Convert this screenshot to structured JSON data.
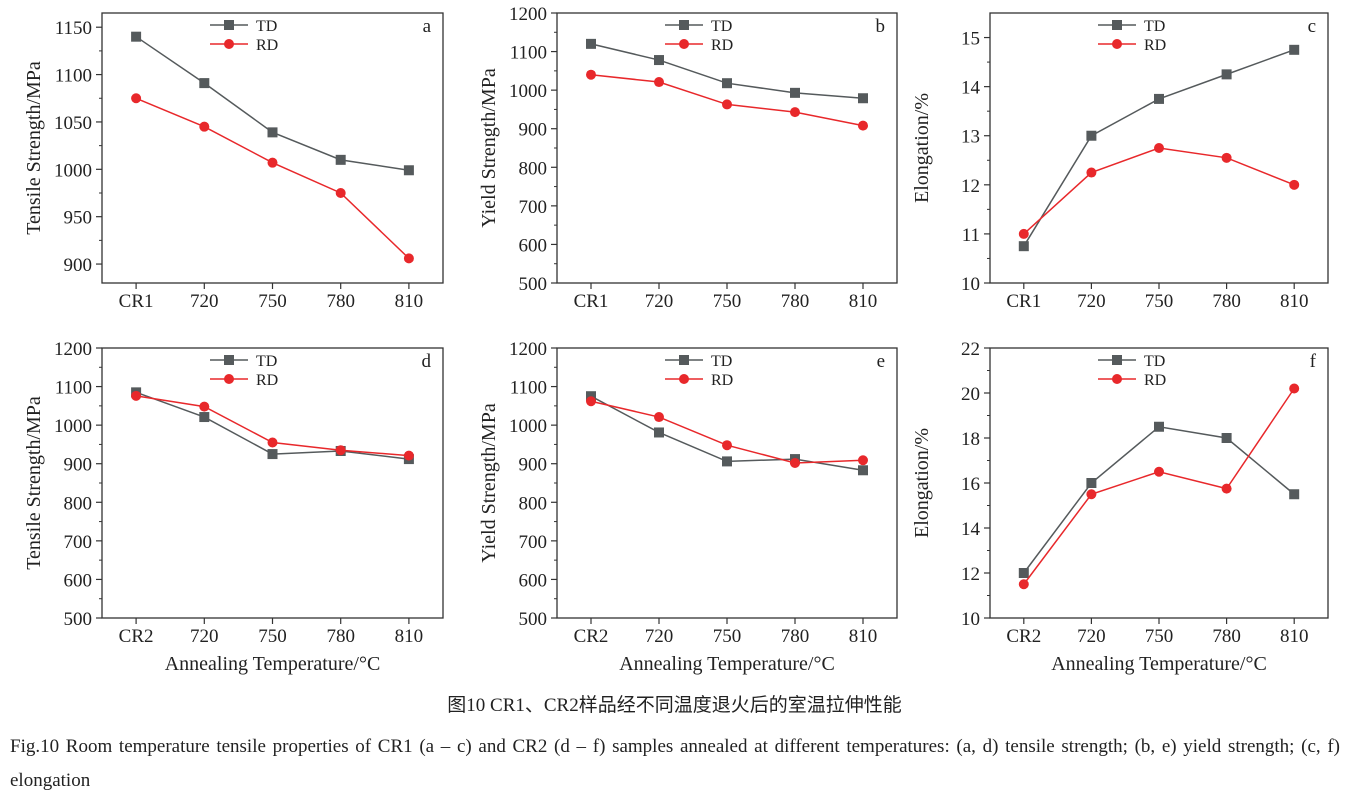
{
  "colors": {
    "td": "#555a5c",
    "rd": "#e8282b",
    "axis": "#333333"
  },
  "caption_cn": "图10 CR1、CR2样品经不同温度退火后的室温拉伸性能",
  "caption_en": "Fig.10 Room temperature tensile properties of CR1 (a – c) and CR2 (d – f) samples annealed at different temperatures: (a, d) tensile strength; (b, e) yield strength; (c, f) elongation",
  "chart_data": [
    {
      "panel": "a",
      "type": "line",
      "ylabel": "Tensile Strength/MPa",
      "xlabel": "",
      "categories": [
        "CR1",
        "720",
        "750",
        "780",
        "810"
      ],
      "ylim": [
        880,
        1165
      ],
      "yticks": [
        900,
        950,
        1000,
        1050,
        1100,
        1150
      ],
      "legend": "top-center",
      "series": [
        {
          "name": "TD",
          "marker": "square",
          "values": [
            1140,
            1091,
            1039,
            1010,
            999
          ]
        },
        {
          "name": "RD",
          "marker": "circle",
          "values": [
            1075,
            1045,
            1007,
            975,
            906
          ]
        }
      ]
    },
    {
      "panel": "b",
      "type": "line",
      "ylabel": "Yield Strength/MPa",
      "xlabel": "",
      "categories": [
        "CR1",
        "720",
        "750",
        "780",
        "810"
      ],
      "ylim": [
        500,
        1200
      ],
      "yticks": [
        500,
        600,
        700,
        800,
        900,
        1000,
        1100,
        1200
      ],
      "legend": "top-center",
      "series": [
        {
          "name": "TD",
          "marker": "square",
          "values": [
            1120,
            1078,
            1018,
            993,
            979
          ]
        },
        {
          "name": "RD",
          "marker": "circle",
          "values": [
            1040,
            1021,
            963,
            943,
            908
          ]
        }
      ]
    },
    {
      "panel": "c",
      "type": "line",
      "ylabel": "Elongation/%",
      "xlabel": "",
      "categories": [
        "CR1",
        "720",
        "750",
        "780",
        "810"
      ],
      "ylim": [
        10,
        15.5
      ],
      "yticks": [
        10,
        11,
        12,
        13,
        14,
        15
      ],
      "legend": "top-center",
      "series": [
        {
          "name": "TD",
          "marker": "square",
          "values": [
            10.75,
            13.0,
            13.75,
            14.25,
            14.75
          ]
        },
        {
          "name": "RD",
          "marker": "circle",
          "values": [
            11.0,
            12.25,
            12.75,
            12.55,
            12.0
          ]
        }
      ]
    },
    {
      "panel": "d",
      "type": "line",
      "ylabel": "Tensile Strength/MPa",
      "xlabel": "Annealing Temperature/°C",
      "categories": [
        "CR2",
        "720",
        "750",
        "780",
        "810"
      ],
      "ylim": [
        500,
        1200
      ],
      "yticks": [
        500,
        600,
        700,
        800,
        900,
        1000,
        1100,
        1200
      ],
      "legend": "top-center",
      "series": [
        {
          "name": "TD",
          "marker": "square",
          "values": [
            1085,
            1021,
            925,
            933,
            912
          ]
        },
        {
          "name": "RD",
          "marker": "circle",
          "values": [
            1076,
            1048,
            955,
            935,
            921
          ]
        }
      ]
    },
    {
      "panel": "e",
      "type": "line",
      "ylabel": "Yield Strength/MPa",
      "xlabel": "Annealing Temperature/°C",
      "categories": [
        "CR2",
        "720",
        "750",
        "780",
        "810"
      ],
      "ylim": [
        500,
        1200
      ],
      "yticks": [
        500,
        600,
        700,
        800,
        900,
        1000,
        1100,
        1200
      ],
      "legend": "top-center",
      "series": [
        {
          "name": "TD",
          "marker": "square",
          "values": [
            1075,
            981,
            906,
            912,
            883
          ]
        },
        {
          "name": "RD",
          "marker": "circle",
          "values": [
            1062,
            1021,
            948,
            902,
            909
          ]
        }
      ]
    },
    {
      "panel": "f",
      "type": "line",
      "ylabel": "Elongation/%",
      "xlabel": "Annealing Temperature/°C",
      "categories": [
        "CR2",
        "720",
        "750",
        "780",
        "810"
      ],
      "ylim": [
        10,
        22
      ],
      "yticks": [
        10,
        12,
        14,
        16,
        18,
        20,
        22
      ],
      "legend": "top-center",
      "series": [
        {
          "name": "TD",
          "marker": "square",
          "values": [
            12.0,
            16.0,
            18.5,
            18.0,
            15.5
          ]
        },
        {
          "name": "RD",
          "marker": "circle",
          "values": [
            11.5,
            15.5,
            16.5,
            15.75,
            20.2
          ]
        }
      ]
    }
  ]
}
